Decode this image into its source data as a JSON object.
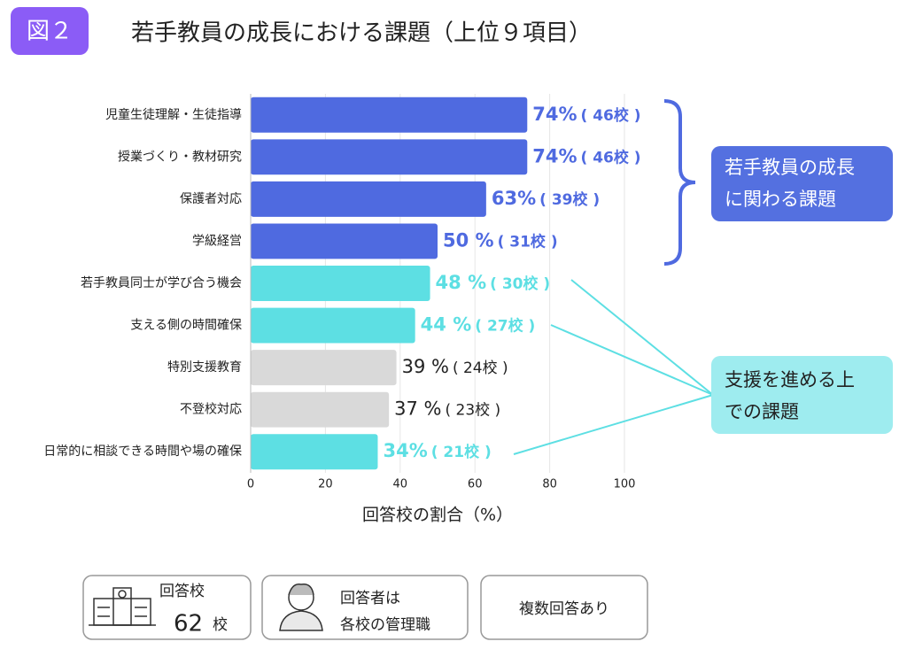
{
  "chart_data": {
    "type": "bar",
    "orientation": "horizontal",
    "badge": "図２",
    "title": "若手教員の成長における課題（上位９項目）",
    "categories": [
      "児童生徒理解・生徒指導",
      "授業づくり・教材研究",
      "保護者対応",
      "学級経営",
      "若手教員同士が学び合う機会",
      "支える側の時間確保",
      "特別支援教育",
      "不登校対応",
      "日常的に相談できる時間や場の確保"
    ],
    "values": [
      74,
      74,
      63,
      50,
      48,
      44,
      39,
      37,
      34
    ],
    "value_labels": [
      "74%",
      "74%",
      "63%",
      "50 %",
      "48 %",
      "44 %",
      "39 %",
      "37 %",
      "34%"
    ],
    "count_labels": [
      "( 46校 )",
      "( 46校 )",
      "( 39校 )",
      "( 31校 )",
      "( 30校 )",
      "( 27校 )",
      "( 24校 )",
      "( 23校 )",
      "( 21校 )"
    ],
    "colors": [
      "#4f6ae0",
      "#4f6ae0",
      "#4f6ae0",
      "#4f6ae0",
      "#5ddfe3",
      "#5ddfe3",
      "#d9d9d9",
      "#d9d9d9",
      "#5ddfe3"
    ],
    "label_colors": [
      "#4f6ae0",
      "#4f6ae0",
      "#4f6ae0",
      "#4f6ae0",
      "#5ddfe3",
      "#5ddfe3",
      "#222222",
      "#222222",
      "#5ddfe3"
    ],
    "xlim": [
      0,
      100
    ],
    "xticks": [
      0,
      20,
      40,
      60,
      80,
      100
    ],
    "grid": true,
    "xlabel": "回答校の割合（%）",
    "annotations": [
      [
        "若手教員の成長",
        "に関わる課題"
      ],
      [
        "支援を進める上",
        "での課題"
      ]
    ]
  },
  "footer": {
    "schools_label": "回答校",
    "schools_count": "62",
    "schools_unit": "校",
    "respondents": [
      "回答者は",
      "各校の管理職"
    ],
    "note": "複数回答あり"
  }
}
